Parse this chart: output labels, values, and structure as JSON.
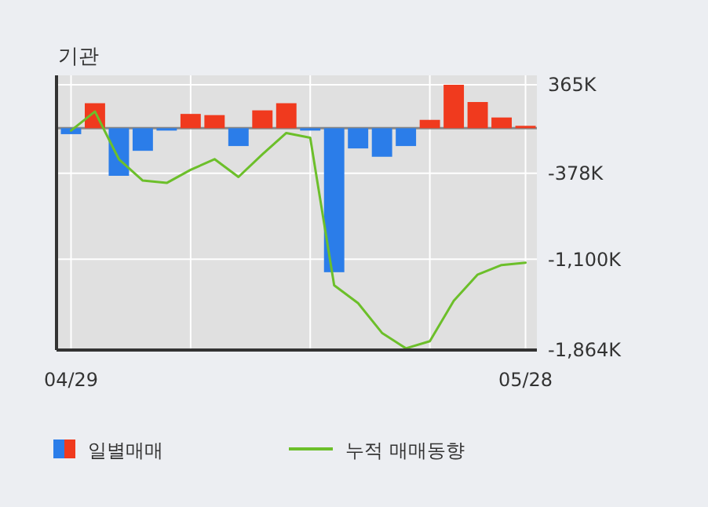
{
  "chart_data": {
    "type": "bar",
    "title": "기관",
    "categories": [
      "04/29",
      null,
      null,
      null,
      null,
      null,
      null,
      null,
      null,
      null,
      null,
      null,
      null,
      null,
      null,
      null,
      null,
      null,
      null,
      "05/28"
    ],
    "series": [
      {
        "name": "일별매매",
        "colors": [
          "#2b7de9",
          "#f03a1e",
          "#2b7de9",
          "#2b7de9",
          "#2b7de9",
          "#f03a1e",
          "#f03a1e",
          "#2b7de9",
          "#f03a1e",
          "#f03a1e",
          "#2b7de9",
          "#2b7de9",
          "#2b7de9",
          "#2b7de9",
          "#2b7de9",
          "#f03a1e",
          "#f03a1e",
          "#f03a1e",
          "#f03a1e",
          "#f03a1e"
        ],
        "values": [
          -50,
          210,
          -400,
          -190,
          -20,
          120,
          110,
          -150,
          150,
          210,
          -20,
          -1210,
          -170,
          -240,
          -150,
          70,
          365,
          220,
          90,
          20
        ]
      },
      {
        "name": "누적 매매동향",
        "type": "line",
        "color": "#6cbf2a",
        "values": [
          -20,
          140,
          -260,
          -440,
          -460,
          -350,
          -260,
          -410,
          -220,
          -40,
          -80,
          -1320,
          -1470,
          -1720,
          -1850,
          -1790,
          -1450,
          -1230,
          -1150,
          -1130
        ]
      }
    ],
    "ylim": [
      -1864,
      365
    ],
    "yticks": [
      {
        "value": 365,
        "label": "365K"
      },
      {
        "value": -378,
        "label": "-378K"
      },
      {
        "value": -1100,
        "label": "-1,100K"
      },
      {
        "value": -1864,
        "label": "-1,864K"
      }
    ],
    "grid": true,
    "legend": "bottom"
  }
}
